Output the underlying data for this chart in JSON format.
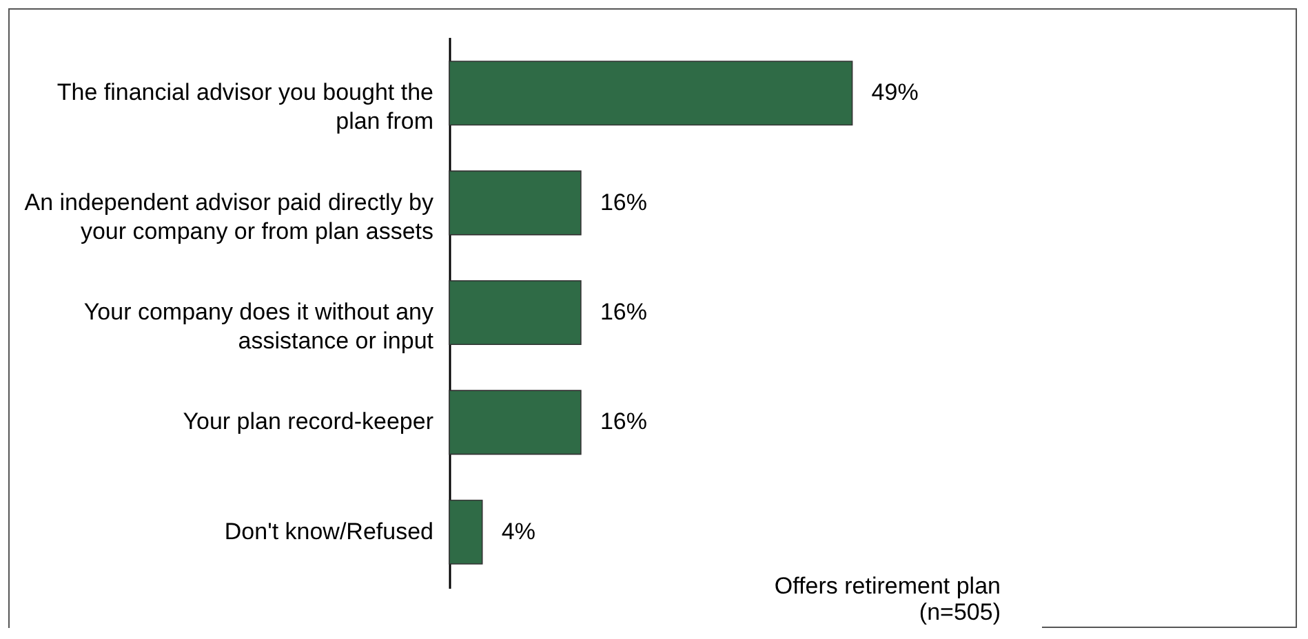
{
  "chart_data": {
    "type": "bar",
    "orientation": "horizontal",
    "categories": [
      "The financial advisor you bought the plan from",
      "An independent advisor paid directly by your company or from plan assets",
      "Your company does it without any assistance or input",
      "Your plan record-keeper",
      "Don't know/Refused"
    ],
    "values": [
      49,
      16,
      16,
      16,
      4
    ],
    "value_labels": [
      "49%",
      "16%",
      "16%",
      "16%",
      "4%"
    ],
    "color": "#2f6b46",
    "annotations": [
      "Offers retirement plan (n=505)"
    ]
  }
}
